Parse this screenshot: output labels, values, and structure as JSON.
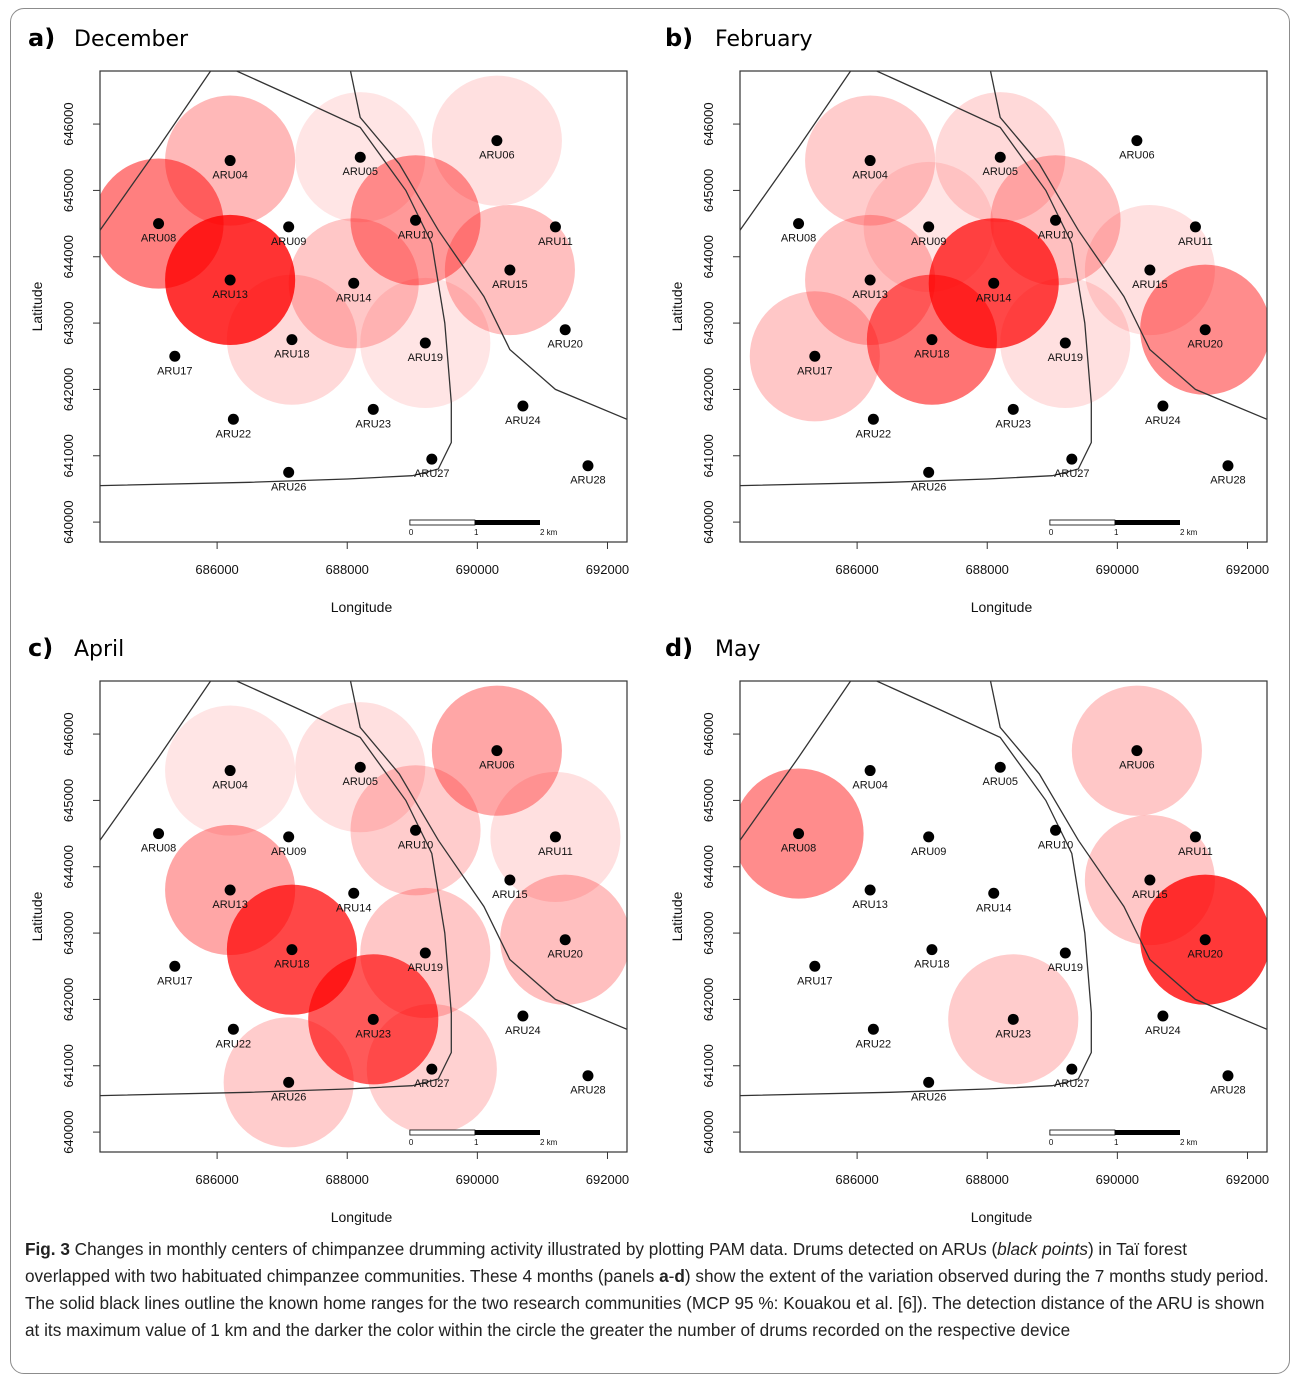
{
  "colors": {
    "circle_fill": "#ff0000",
    "point": "#000000",
    "boundary": "#333333",
    "plot_border": "#333333"
  },
  "caption": {
    "label": "Fig. 3",
    "text_1": " Changes in monthly centers of chimpanzee drumming activity illustrated by plotting PAM data. Drums detected on ARUs (",
    "italic_1": "black points",
    "text_2": ") in Taï forest overlapped with two habituated chimpanzee communities. These 4 months (panels ",
    "bold_a": "a",
    "dash": "-",
    "bold_d": "d",
    "text_3": ") show the extent of the variation observed during the 7 months study period. The solid black lines outline the known home ranges for the two research communities (MCP 95 %: Kouakou et al. [6]). The detection distance of the ARU is shown at its maximum value of 1 km and the darker the color within the circle the greater the number of drums recorded on the respective device"
  },
  "chart_data": [
    {
      "type": "scatter",
      "panel_letter": "a)",
      "title": "December",
      "xlabel": "Longitude",
      "ylabel": "Latitude",
      "xticks": [
        686000,
        688000,
        690000,
        692000
      ],
      "yticks": [
        640000,
        641000,
        642000,
        643000,
        644000,
        645000,
        646000
      ],
      "xlim": [
        684200,
        692300
      ],
      "ylim": [
        639700,
        646800
      ],
      "detection_radius_m": 1000,
      "scale_bar": {
        "labels": [
          "0",
          "1",
          "2 km"
        ]
      },
      "circles": [
        {
          "aru": "ARU04",
          "intensity": 0.28
        },
        {
          "aru": "ARU05",
          "intensity": 0.1
        },
        {
          "aru": "ARU06",
          "intensity": 0.12
        },
        {
          "aru": "ARU08",
          "intensity": 0.5
        },
        {
          "aru": "ARU10",
          "intensity": 0.4
        },
        {
          "aru": "ARU13",
          "intensity": 0.8
        },
        {
          "aru": "ARU14",
          "intensity": 0.22
        },
        {
          "aru": "ARU15",
          "intensity": 0.25
        },
        {
          "aru": "ARU18",
          "intensity": 0.15
        },
        {
          "aru": "ARU19",
          "intensity": 0.1
        }
      ]
    },
    {
      "type": "scatter",
      "panel_letter": "b)",
      "title": "February",
      "xlabel": "Longitude",
      "ylabel": "Latitude",
      "xticks": [
        686000,
        688000,
        690000,
        692000
      ],
      "yticks": [
        640000,
        641000,
        642000,
        643000,
        644000,
        645000,
        646000
      ],
      "xlim": [
        684200,
        692300
      ],
      "ylim": [
        639700,
        646800
      ],
      "detection_radius_m": 1000,
      "scale_bar": {
        "labels": [
          "0",
          "1",
          "2 km"
        ]
      },
      "circles": [
        {
          "aru": "ARU04",
          "intensity": 0.2
        },
        {
          "aru": "ARU05",
          "intensity": 0.15
        },
        {
          "aru": "ARU09",
          "intensity": 0.1
        },
        {
          "aru": "ARU10",
          "intensity": 0.25
        },
        {
          "aru": "ARU13",
          "intensity": 0.25
        },
        {
          "aru": "ARU14",
          "intensity": 0.72
        },
        {
          "aru": "ARU15",
          "intensity": 0.12
        },
        {
          "aru": "ARU17",
          "intensity": 0.22
        },
        {
          "aru": "ARU18",
          "intensity": 0.55
        },
        {
          "aru": "ARU19",
          "intensity": 0.12
        },
        {
          "aru": "ARU20",
          "intensity": 0.45
        }
      ]
    },
    {
      "type": "scatter",
      "panel_letter": "c)",
      "title": "April",
      "xlabel": "Longitude",
      "ylabel": "Latitude",
      "xticks": [
        686000,
        688000,
        690000,
        692000
      ],
      "yticks": [
        640000,
        641000,
        642000,
        643000,
        644000,
        645000,
        646000
      ],
      "xlim": [
        684200,
        692300
      ],
      "ylim": [
        639700,
        646800
      ],
      "detection_radius_m": 1000,
      "scale_bar": {
        "labels": [
          "0",
          "1",
          "2 km"
        ]
      },
      "circles": [
        {
          "aru": "ARU04",
          "intensity": 0.1
        },
        {
          "aru": "ARU05",
          "intensity": 0.12
        },
        {
          "aru": "ARU06",
          "intensity": 0.35
        },
        {
          "aru": "ARU10",
          "intensity": 0.2
        },
        {
          "aru": "ARU11",
          "intensity": 0.12
        },
        {
          "aru": "ARU13",
          "intensity": 0.35
        },
        {
          "aru": "ARU18",
          "intensity": 0.72
        },
        {
          "aru": "ARU19",
          "intensity": 0.22
        },
        {
          "aru": "ARU20",
          "intensity": 0.25
        },
        {
          "aru": "ARU23",
          "intensity": 0.65
        },
        {
          "aru": "ARU26",
          "intensity": 0.2
        },
        {
          "aru": "ARU27",
          "intensity": 0.18
        }
      ]
    },
    {
      "type": "scatter",
      "panel_letter": "d)",
      "title": "May",
      "xlabel": "Longitude",
      "ylabel": "Latitude",
      "xticks": [
        686000,
        688000,
        690000,
        692000
      ],
      "yticks": [
        640000,
        641000,
        642000,
        643000,
        644000,
        645000,
        646000
      ],
      "xlim": [
        684200,
        692300
      ],
      "ylim": [
        639700,
        646800
      ],
      "detection_radius_m": 1000,
      "scale_bar": {
        "labels": [
          "0",
          "1",
          "2 km"
        ]
      },
      "circles": [
        {
          "aru": "ARU06",
          "intensity": 0.22
        },
        {
          "aru": "ARU08",
          "intensity": 0.45
        },
        {
          "aru": "ARU15",
          "intensity": 0.22
        },
        {
          "aru": "ARU20",
          "intensity": 0.78
        },
        {
          "aru": "ARU23",
          "intensity": 0.2
        }
      ]
    }
  ],
  "arus": [
    {
      "name": "ARU04",
      "lon": 686200,
      "lat": 645450
    },
    {
      "name": "ARU05",
      "lon": 688200,
      "lat": 645500
    },
    {
      "name": "ARU06",
      "lon": 690300,
      "lat": 645750
    },
    {
      "name": "ARU08",
      "lon": 685100,
      "lat": 644500
    },
    {
      "name": "ARU09",
      "lon": 687100,
      "lat": 644450
    },
    {
      "name": "ARU10",
      "lon": 689050,
      "lat": 644550
    },
    {
      "name": "ARU11",
      "lon": 691200,
      "lat": 644450
    },
    {
      "name": "ARU13",
      "lon": 686200,
      "lat": 643650
    },
    {
      "name": "ARU14",
      "lon": 688100,
      "lat": 643600
    },
    {
      "name": "ARU15",
      "lon": 690500,
      "lat": 643800
    },
    {
      "name": "ARU17",
      "lon": 685350,
      "lat": 642500
    },
    {
      "name": "ARU18",
      "lon": 687150,
      "lat": 642750
    },
    {
      "name": "ARU19",
      "lon": 689200,
      "lat": 642700
    },
    {
      "name": "ARU20",
      "lon": 691350,
      "lat": 642900
    },
    {
      "name": "ARU22",
      "lon": 686250,
      "lat": 641550
    },
    {
      "name": "ARU23",
      "lon": 688400,
      "lat": 641700
    },
    {
      "name": "ARU24",
      "lon": 690700,
      "lat": 641750
    },
    {
      "name": "ARU26",
      "lon": 687100,
      "lat": 640750
    },
    {
      "name": "ARU27",
      "lon": 689300,
      "lat": 640950
    },
    {
      "name": "ARU28",
      "lon": 691700,
      "lat": 640850
    }
  ],
  "home_ranges": [
    {
      "name": "north",
      "points": [
        [
          684200,
          644400
        ],
        [
          685100,
          645650
        ],
        [
          685900,
          646800
        ],
        [
          686300,
          646800
        ],
        [
          687200,
          646400
        ],
        [
          688200,
          645950
        ],
        [
          688900,
          645000
        ],
        [
          689300,
          644200
        ],
        [
          689500,
          643000
        ],
        [
          689600,
          641800
        ],
        [
          689600,
          641200
        ],
        [
          689400,
          640800
        ],
        [
          689000,
          640700
        ],
        [
          688000,
          640650
        ],
        [
          686500,
          640600
        ],
        [
          684200,
          640550
        ]
      ]
    },
    {
      "name": "east",
      "points": [
        [
          688050,
          646800
        ],
        [
          688200,
          646100
        ],
        [
          688800,
          645400
        ],
        [
          689400,
          644400
        ],
        [
          690100,
          643400
        ],
        [
          690500,
          642600
        ],
        [
          691200,
          642000
        ],
        [
          692300,
          641550
        ]
      ]
    }
  ]
}
